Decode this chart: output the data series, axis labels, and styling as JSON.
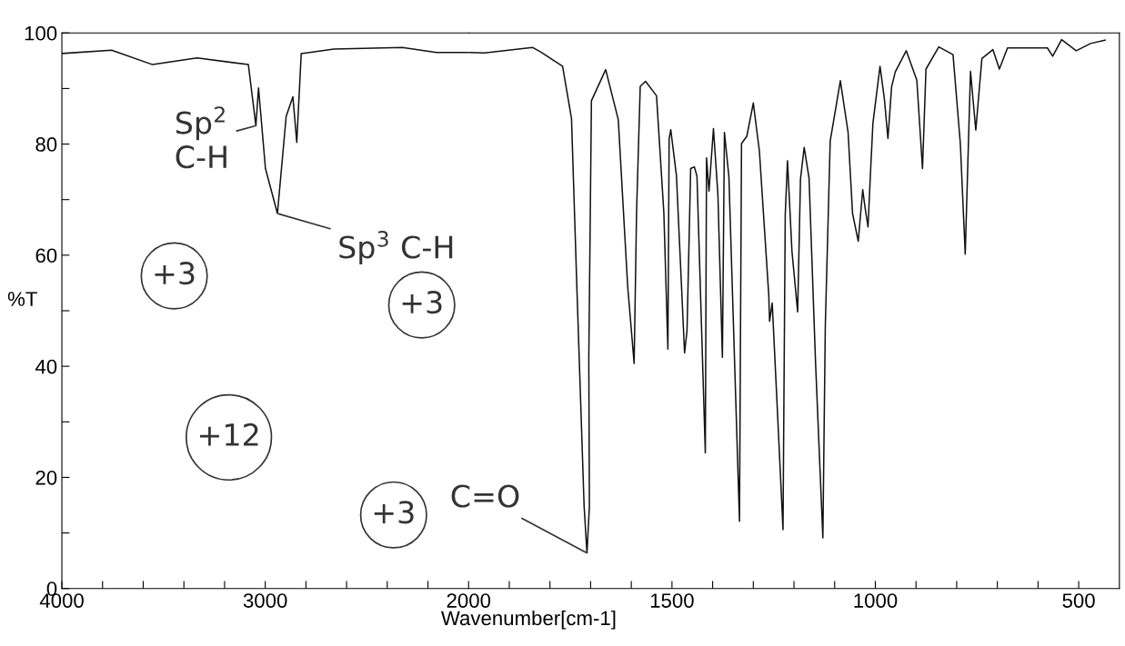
{
  "chart_data": [
    {
      "type": "line",
      "ylabel": "%T",
      "tick_labels": true,
      "xlim": [
        4000,
        2000
      ],
      "ylim": [
        0,
        100
      ],
      "xticks": [
        4000,
        {
          "value": 3800,
          "label": null
        },
        {
          "value": 3600,
          "label": null
        },
        {
          "value": 3400,
          "label": null
        },
        {
          "value": 3200,
          "label": null
        },
        3000,
        {
          "value": 2800,
          "label": null
        },
        {
          "value": 2600,
          "label": null
        },
        {
          "value": 2400,
          "label": null
        },
        {
          "value": 2200,
          "label": null
        },
        2000
      ],
      "yticks": [
        0,
        {
          "value": 10,
          "label": null
        },
        20,
        {
          "value": 30,
          "label": null
        },
        40,
        {
          "value": 50,
          "label": null
        },
        60,
        {
          "value": 70,
          "label": null
        },
        80,
        {
          "value": 90,
          "label": null
        },
        100
      ],
      "grid": false,
      "marker": "none",
      "line_style": "solid",
      "series": [
        {
          "color": "#111111",
          "x": [
            4000,
            3755,
            3554,
            3335,
            3083,
            3046,
            3033,
            2999,
            2940,
            2897,
            2864,
            2845,
            2823,
            2662,
            2326,
            2158,
            2000
          ],
          "values": [
            96.3,
            96.9,
            94.3,
            95.5,
            94.3,
            83.3,
            90.1,
            75.6,
            67.5,
            85.0,
            88.5,
            80.3,
            96.3,
            97.1,
            97.4,
            96.5,
            96.5
          ]
        }
      ],
      "annotations": [
        {
          "text": "Sp$^{2}$\nC-H",
          "x": 3046,
          "y": 83.3
        },
        {
          "text": "Sp$^{3}$ C-H",
          "x": 2940,
          "y": 67.5
        },
        "+3",
        "+3",
        "+12",
        "+3"
      ]
    },
    {
      "type": "line",
      "xlabel": "Wavenumber[cm-1]",
      "tick_labels": "x",
      "xlim": [
        2000,
        400
      ],
      "ylim": [
        0,
        100
      ],
      "xticks": [
        {
          "value": 1900,
          "label": null
        },
        {
          "value": 1800,
          "label": null
        },
        {
          "value": 1700,
          "label": null
        },
        {
          "value": 1600,
          "label": null
        },
        1500,
        {
          "value": 1400,
          "label": null
        },
        {
          "value": 1300,
          "label": null
        },
        {
          "value": 1200,
          "label": null
        },
        {
          "value": 1100,
          "label": null
        },
        1000,
        {
          "value": 900,
          "label": null
        },
        {
          "value": 800,
          "label": null
        },
        {
          "value": 700,
          "label": null
        },
        {
          "value": 600,
          "label": null
        },
        500
      ],
      "grid": false,
      "marker": "none",
      "line_style": "solid",
      "series": [
        {
          "color": "#111111",
          "x": [
            2000,
            1961,
            1843,
            1823,
            1769,
            1747,
            1734,
            1716,
            1709,
            1703,
            1704.5,
            1698,
            1663,
            1632,
            1609,
            1593,
            1587,
            1578,
            1565,
            1538,
            1520,
            1510,
            1507,
            1503,
            1489,
            1469,
            1463,
            1454,
            1445,
            1438.5,
            1418,
            1415,
            1409,
            1398,
            1387,
            1376,
            1371,
            1360,
            1334,
            1329,
            1316,
            1300,
            1285,
            1262,
            1260,
            1253.5,
            1240,
            1227,
            1221.5,
            1216,
            1205,
            1191,
            1184,
            1175,
            1163,
            1147,
            1129,
            1123,
            1111,
            1086,
            1067,
            1056,
            1042,
            1031,
            1025,
            1018,
            1013,
            1006,
            988.5,
            978,
            969,
            960,
            951,
            924,
            898,
            884,
            875.5,
            844,
            809,
            791,
            779,
            766,
            753,
            738,
            711,
            695,
            675,
            577,
            564,
            542,
            506,
            471,
            435
          ],
          "values": [
            96.5,
            96.4,
            97.4,
            96.6,
            94.0,
            84.6,
            54.6,
            14.8,
            6.4,
            14.8,
            41.3,
            87.8,
            93.4,
            84.4,
            54.5,
            40.5,
            68.0,
            90.4,
            91.3,
            88.7,
            67.7,
            43.1,
            80.9,
            82.6,
            74.3,
            42.4,
            46.4,
            75.6,
            75.9,
            74.2,
            24.4,
            77.5,
            71.5,
            82.8,
            70.8,
            41.6,
            82.1,
            74.1,
            12.1,
            80.1,
            81.4,
            87.4,
            78.7,
            52.8,
            48.1,
            51.4,
            30.8,
            10.6,
            67.3,
            77.0,
            60.7,
            49.8,
            73.7,
            79.4,
            73.9,
            40.7,
            9.1,
            47.3,
            80.5,
            91.4,
            82.1,
            67.5,
            62.5,
            71.8,
            68.4,
            65.1,
            73.1,
            83.7,
            94.0,
            88.3,
            81.0,
            90.3,
            93.0,
            96.8,
            91.5,
            75.6,
            93.5,
            97.5,
            96.1,
            80.1,
            60.2,
            93.1,
            82.5,
            95.4,
            97.0,
            93.5,
            97.3,
            97.3,
            95.8,
            98.8,
            96.8,
            98.1,
            98.7
          ]
        }
      ],
      "annotations": [
        {
          "text": "C=O",
          "x": 1709,
          "y": 6.4
        }
      ]
    }
  ]
}
